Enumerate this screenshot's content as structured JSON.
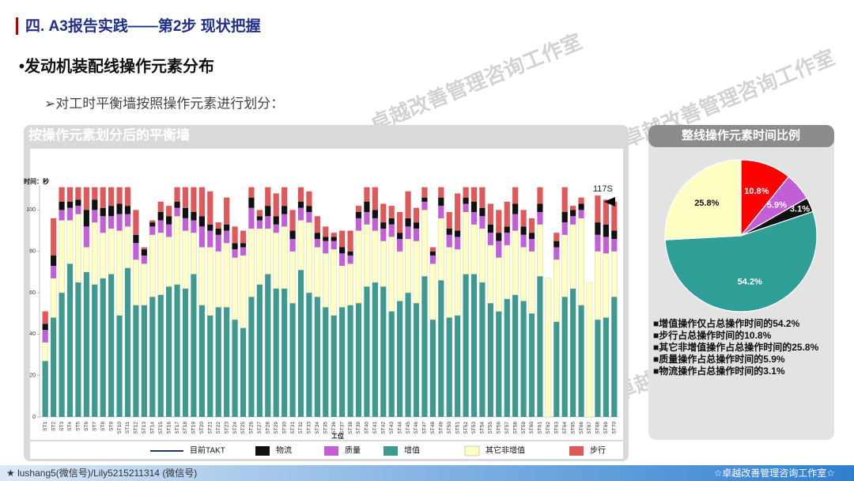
{
  "slide": {
    "title": "四. A3报告实践——第2步 现状把握",
    "bullet": "•发动机装配线操作元素分布",
    "sub_bullet": "➢对工时平衡墙按照操作元素进行划分：",
    "watermark": "卓越改善管理咨询工作室",
    "footer_left": "★ lushang5(微信号)/Lily5215211314 (微信号)",
    "footer_right": "☆卓越改善管理咨询工作室☆"
  },
  "chart_data": [
    {
      "type": "stacked_bar",
      "title": "按操作元素划分后的平衡墙",
      "y_label": "时间：秒",
      "x_label": "工位",
      "annotation": "117S",
      "takt_legend": {
        "name": "目前TAKT",
        "color": "#1f3864"
      },
      "categories": [
        "ST1",
        "ST2",
        "ST3",
        "ST4",
        "ST5",
        "ST6",
        "ST7",
        "ST8",
        "ST9",
        "ST10",
        "ST11",
        "ST12",
        "ST13",
        "ST14",
        "ST15",
        "ST16",
        "ST17",
        "ST18",
        "ST19",
        "ST20",
        "ST21",
        "ST22",
        "ST23",
        "ST24",
        "ST25",
        "ST26",
        "ST27",
        "ST28",
        "ST29",
        "ST30",
        "ST31",
        "ST32",
        "ST33",
        "ST34",
        "ST35",
        "ST36",
        "ST37",
        "ST38",
        "ST39",
        "ST40",
        "ST41",
        "ST42",
        "ST43",
        "ST44",
        "ST45",
        "ST46",
        "ST47",
        "ST48",
        "ST49",
        "ST50",
        "ST51",
        "ST52",
        "ST53",
        "ST54",
        "ST55",
        "ST56",
        "ST57",
        "ST58",
        "ST59",
        "ST60",
        "ST61",
        "ST62",
        "ST63",
        "ST64",
        "ST65",
        "ST66",
        "ST67",
        "ST68",
        "ST69",
        "ST70"
      ],
      "series": [
        {
          "name": "物流",
          "color": "#111111",
          "values": [
            3,
            5,
            4,
            3,
            3,
            8,
            5,
            4,
            5,
            5,
            4,
            4,
            3,
            2,
            4,
            4,
            3,
            5,
            4,
            5,
            3,
            3,
            3,
            3,
            2,
            5,
            2,
            5,
            4,
            4,
            4,
            3,
            3,
            3,
            2,
            2,
            3,
            2,
            3,
            5,
            4,
            3,
            3,
            3,
            4,
            3,
            2,
            2,
            4,
            3,
            3,
            3,
            5,
            4,
            4,
            4,
            3,
            5,
            4,
            3,
            4,
            0,
            3,
            5,
            3,
            3,
            0,
            6,
            6,
            4
          ]
        },
        {
          "name": "质量",
          "color": "#c25fd6",
          "values": [
            6,
            6,
            5,
            6,
            4,
            10,
            6,
            8,
            6,
            8,
            6,
            8,
            4,
            4,
            6,
            6,
            4,
            6,
            6,
            10,
            8,
            8,
            6,
            4,
            4,
            10,
            4,
            6,
            4,
            6,
            6,
            6,
            5,
            4,
            6,
            4,
            6,
            4,
            6,
            6,
            6,
            6,
            6,
            6,
            6,
            6,
            4,
            4,
            6,
            6,
            6,
            4,
            6,
            6,
            6,
            8,
            6,
            8,
            6,
            6,
            6,
            0,
            6,
            6,
            4,
            4,
            0,
            8,
            8,
            6
          ]
        },
        {
          "name": "增值",
          "color": "#3e9a8e",
          "values": [
            27,
            48,
            60,
            74,
            65,
            70,
            64,
            67,
            69,
            49,
            72,
            54,
            54,
            58,
            59,
            63,
            64,
            62,
            69,
            54,
            49,
            53,
            53,
            47,
            43,
            58,
            64,
            69,
            62,
            62,
            55,
            71,
            60,
            58,
            53,
            49,
            53,
            54,
            55,
            63,
            65,
            63,
            51,
            56,
            60,
            55,
            68,
            47,
            66,
            48,
            49,
            69,
            69,
            65,
            55,
            51,
            57,
            59,
            56,
            50,
            68,
            0,
            46,
            58,
            62,
            54,
            0,
            47,
            48,
            58
          ]
        },
        {
          "name": "其它非增值",
          "color": "#ffffc4",
          "values": [
            9,
            19,
            35,
            21,
            33,
            12,
            30,
            22,
            22,
            41,
            20,
            22,
            20,
            30,
            30,
            24,
            33,
            28,
            20,
            28,
            33,
            27,
            31,
            30,
            35,
            33,
            27,
            22,
            27,
            30,
            25,
            24,
            34,
            24,
            26,
            32,
            20,
            20,
            35,
            30,
            25,
            22,
            36,
            24,
            26,
            30,
            32,
            27,
            30,
            34,
            32,
            30,
            24,
            26,
            28,
            26,
            26,
            31,
            26,
            30,
            25,
            67,
            30,
            30,
            31,
            42,
            65,
            33,
            31,
            22
          ]
        },
        {
          "name": "步行",
          "color": "#e0595a",
          "values": [
            6,
            18,
            7,
            7,
            6,
            11,
            6,
            10,
            9,
            8,
            9,
            12,
            1,
            1,
            5,
            5,
            7,
            10,
            12,
            14,
            16,
            3,
            13,
            8,
            6,
            5,
            3,
            9,
            11,
            9,
            10,
            7,
            7,
            8,
            5,
            2,
            8,
            10,
            3,
            7,
            11,
            9,
            6,
            10,
            13,
            7,
            5,
            2,
            5,
            8,
            18,
            5,
            7,
            10,
            10,
            11,
            12,
            8,
            8,
            7,
            8,
            0,
            4,
            12,
            2,
            3,
            0,
            13,
            12,
            14
          ]
        }
      ],
      "ylim": [
        0,
        112
      ],
      "yticks": [
        0,
        20,
        40,
        60,
        80,
        100
      ]
    },
    {
      "type": "pie",
      "title": "整线操作元素时间比例",
      "categories": [
        "步行",
        "质量",
        "物流",
        "增值",
        "其它非增值"
      ],
      "values": [
        10.8,
        5.9,
        3.1,
        54.2,
        25.8
      ],
      "value_labels": [
        "10.8%",
        "5.9%",
        "3.1%",
        "54.2%",
        "25.8%"
      ],
      "colors": [
        "#ff0000",
        "#c25fd6",
        "#111111",
        "#2f9e96",
        "#ffffc4"
      ],
      "notes": [
        "■增值操作仅占总操作时间的54.2%",
        "■步行占总操作时间的10.8%",
        "■其它非增值操作占总操作时间的25.8%",
        "■质量操作占总操作时间的5.9%",
        "■物流操作占总操作时间的3.1%"
      ]
    }
  ]
}
